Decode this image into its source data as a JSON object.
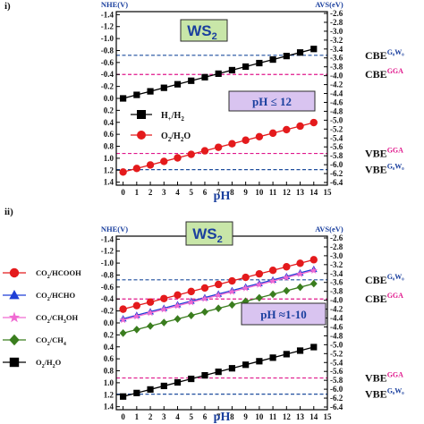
{
  "chart_data": [
    {
      "type": "line",
      "panel_label": "i)",
      "left_axis_label": "NHE(V)",
      "right_axis_label": "AVS(eV)",
      "xlabel": "pH",
      "x_ticks": [
        0,
        1,
        2,
        3,
        4,
        5,
        6,
        7,
        8,
        9,
        10,
        11,
        12,
        13,
        14,
        15
      ],
      "xlim": [
        -0.5,
        15
      ],
      "left_ylim": [
        1.45,
        -1.45
      ],
      "left_ticks": [
        -1.4,
        -1.2,
        -1.0,
        -0.8,
        -0.6,
        -0.4,
        -0.2,
        0.0,
        0.2,
        0.4,
        0.6,
        0.8,
        1.0,
        1.2,
        1.4
      ],
      "left_tick_labels": [
        "-1.4",
        "-1.2",
        "-1.0",
        "-0.8",
        "-0.6",
        "-0.4",
        "-0.2",
        "0.0",
        "0.2",
        "0.4",
        "0.6",
        "0.8",
        "1.0",
        "1.2",
        "1.4"
      ],
      "right_ticks": [
        -2.6,
        -2.8,
        -3.0,
        -3.2,
        -3.4,
        -3.6,
        -3.8,
        -4.0,
        -4.2,
        -4.4,
        -4.6,
        -4.8,
        -5.0,
        -5.2,
        -5.4,
        -5.6,
        -5.8,
        -6.0,
        -6.2,
        -6.4
      ],
      "right_tick_labels": [
        "-2.6",
        "-2.8",
        "-3.0",
        "-3.2",
        "-3.4",
        "-3.6",
        "-3.8",
        "-4.0",
        "-4.2",
        "-4.4",
        "-4.6",
        "-4.8",
        "-5.0",
        "-5.2",
        "-5.4",
        "-5.6",
        "-5.8",
        "-6.0",
        "-6.2",
        "-6.4"
      ],
      "material_label": "WS",
      "material_sub": "2",
      "condition_label": "pH ≤ 12",
      "series": [
        {
          "name": "H+/H2",
          "legend_main": "H",
          "legend_sub1": "+",
          "legend_mid": "/H",
          "legend_sub2": "2",
          "color": "#000000",
          "marker": "square",
          "x": [
            0,
            1,
            2,
            3,
            4,
            5,
            6,
            7,
            8,
            9,
            10,
            11,
            12,
            13,
            14
          ],
          "y": [
            0.0,
            -0.059,
            -0.118,
            -0.177,
            -0.236,
            -0.295,
            -0.354,
            -0.413,
            -0.472,
            -0.531,
            -0.59,
            -0.649,
            -0.708,
            -0.767,
            -0.826
          ]
        },
        {
          "name": "O2/H2O",
          "legend_main": "O",
          "legend_sub1": "2",
          "legend_mid": "/H",
          "legend_sub2": "2",
          "legend_tail": "O",
          "color": "#e41a1c",
          "marker": "circle",
          "x": [
            0,
            1,
            2,
            3,
            4,
            5,
            6,
            7,
            8,
            9,
            10,
            11,
            12,
            13,
            14
          ],
          "y": [
            1.23,
            1.171,
            1.112,
            1.053,
            0.994,
            0.935,
            0.876,
            0.817,
            0.758,
            0.699,
            0.64,
            0.581,
            0.522,
            0.463,
            0.404
          ]
        }
      ],
      "reference_lines": [
        {
          "name": "CBE G0W0",
          "y": -0.72,
          "color": "#1f4e9e",
          "label_main": "CBE",
          "label_sup": "G₀W₀",
          "sup_color": "#1a3f9e"
        },
        {
          "name": "CBE GGA",
          "y": -0.4,
          "color": "#e0188c",
          "label_main": "CBE",
          "label_sup": "GGA",
          "sup_color": "#e0188c"
        },
        {
          "name": "VBE GGA",
          "y": 0.92,
          "color": "#e0188c",
          "label_main": "VBE",
          "label_sup": "GGA",
          "sup_color": "#e0188c"
        },
        {
          "name": "VBE G0W0",
          "y": 1.19,
          "color": "#1f4e9e",
          "label_main": "VBE",
          "label_sup": "G₀W₀",
          "sup_color": "#1a3f9e"
        }
      ]
    },
    {
      "type": "line",
      "panel_label": "ii)",
      "left_axis_label": "NHE(V)",
      "right_axis_label": "AVS(eV)",
      "xlabel": "pH",
      "x_ticks": [
        0,
        1,
        2,
        3,
        4,
        5,
        6,
        7,
        8,
        9,
        10,
        11,
        12,
        13,
        14,
        15
      ],
      "xlim": [
        -0.5,
        15
      ],
      "left_ylim": [
        1.45,
        -1.45
      ],
      "left_ticks": [
        -1.4,
        -1.2,
        -1.0,
        -0.8,
        -0.6,
        -0.4,
        -0.2,
        0.0,
        0.2,
        0.4,
        0.6,
        0.8,
        1.0,
        1.2,
        1.4
      ],
      "left_tick_labels": [
        "-1.4",
        "-1.2",
        "-1.0",
        "-0.8",
        "-0.6",
        "-0.4",
        "-0.2",
        "0.0",
        "0.2",
        "0.4",
        "0.6",
        "0.8",
        "1.0",
        "1.2",
        "1.4"
      ],
      "right_ticks": [
        -2.6,
        -2.8,
        -3.0,
        -3.2,
        -3.4,
        -3.6,
        -3.8,
        -4.0,
        -4.2,
        -4.4,
        -4.6,
        -4.8,
        -5.0,
        -5.2,
        -5.4,
        -5.6,
        -5.8,
        -6.0,
        -6.2,
        -6.4
      ],
      "right_tick_labels": [
        "-2.6",
        "-2.8",
        "-3.0",
        "-3.2",
        "-3.4",
        "-3.6",
        "-3.8",
        "-4.0",
        "-4.2",
        "-4.4",
        "-4.6",
        "-4.8",
        "-5.0",
        "-5.2",
        "-5.4",
        "-5.6",
        "-5.8",
        "-6.0",
        "-6.2",
        "-6.4"
      ],
      "material_label": "WS",
      "material_sub": "2",
      "condition_label": "pH ≈1-10",
      "series": [
        {
          "name": "CO2/HCOOH",
          "legend_main": "CO",
          "legend_sub1": "2",
          "legend_mid": "/HCOOH",
          "color": "#e41a1c",
          "marker": "circle",
          "x": [
            0,
            1,
            2,
            3,
            4,
            5,
            6,
            7,
            8,
            9,
            10,
            11,
            12,
            13,
            14
          ],
          "y": [
            -0.23,
            -0.289,
            -0.348,
            -0.407,
            -0.466,
            -0.525,
            -0.584,
            -0.643,
            -0.702,
            -0.761,
            -0.82,
            -0.879,
            -0.938,
            -0.997,
            -1.056
          ]
        },
        {
          "name": "CO2/HCHO",
          "legend_main": "CO",
          "legend_sub1": "2",
          "legend_mid": "/HCHO",
          "color": "#1f3fd6",
          "marker": "triangle",
          "x": [
            0,
            1,
            2,
            3,
            4,
            5,
            6,
            7,
            8,
            9,
            10,
            11,
            12,
            13,
            14
          ],
          "y": [
            -0.07,
            -0.129,
            -0.188,
            -0.247,
            -0.306,
            -0.365,
            -0.424,
            -0.483,
            -0.542,
            -0.601,
            -0.66,
            -0.719,
            -0.778,
            -0.837,
            -0.896
          ]
        },
        {
          "name": "CO2/CH3OH",
          "legend_main": "CO",
          "legend_sub1": "2",
          "legend_mid": "/CH",
          "legend_sub2": "3",
          "legend_tail": "OH",
          "color": "#f06ad2",
          "marker": "star",
          "x": [
            0,
            1,
            2,
            3,
            4,
            5,
            6,
            7,
            8,
            9,
            10,
            11,
            12,
            13,
            14
          ],
          "y": [
            -0.05,
            -0.109,
            -0.168,
            -0.227,
            -0.286,
            -0.345,
            -0.404,
            -0.463,
            -0.522,
            -0.581,
            -0.64,
            -0.699,
            -0.758,
            -0.817,
            -0.876
          ]
        },
        {
          "name": "CO2/CH4",
          "legend_main": "CO",
          "legend_sub1": "2",
          "legend_mid": "/CH",
          "legend_sub2": "4",
          "color": "#3a7d1e",
          "marker": "diamond",
          "x": [
            0,
            1,
            2,
            3,
            4,
            5,
            6,
            7,
            8,
            9,
            10,
            11,
            12,
            13,
            14
          ],
          "y": [
            0.17,
            0.111,
            0.052,
            -0.007,
            -0.066,
            -0.125,
            -0.184,
            -0.243,
            -0.302,
            -0.361,
            -0.42,
            -0.479,
            -0.538,
            -0.597,
            -0.656
          ]
        },
        {
          "name": "O2/H2O",
          "legend_main": "O",
          "legend_sub1": "2",
          "legend_mid": "/H",
          "legend_sub2": "2",
          "legend_tail": "O",
          "color": "#000000",
          "marker": "square",
          "x": [
            0,
            1,
            2,
            3,
            4,
            5,
            6,
            7,
            8,
            9,
            10,
            11,
            12,
            13,
            14
          ],
          "y": [
            1.23,
            1.171,
            1.112,
            1.053,
            0.994,
            0.935,
            0.876,
            0.817,
            0.758,
            0.699,
            0.64,
            0.581,
            0.522,
            0.463,
            0.404
          ]
        }
      ],
      "reference_lines": [
        {
          "name": "CBE G0W0",
          "y": -0.72,
          "color": "#1f4e9e",
          "label_main": "CBE",
          "label_sup": "G₀W₀",
          "sup_color": "#1a3f9e"
        },
        {
          "name": "CBE GGA",
          "y": -0.4,
          "color": "#e0188c",
          "label_main": "CBE",
          "label_sup": "GGA",
          "sup_color": "#e0188c"
        },
        {
          "name": "VBE GGA",
          "y": 0.92,
          "color": "#e0188c",
          "label_main": "VBE",
          "label_sup": "GGA",
          "sup_color": "#e0188c"
        },
        {
          "name": "VBE G0W0",
          "y": 1.19,
          "color": "#1f4e9e",
          "label_main": "VBE",
          "label_sup": "G₀W₀",
          "sup_color": "#1a3f9e"
        }
      ]
    }
  ]
}
